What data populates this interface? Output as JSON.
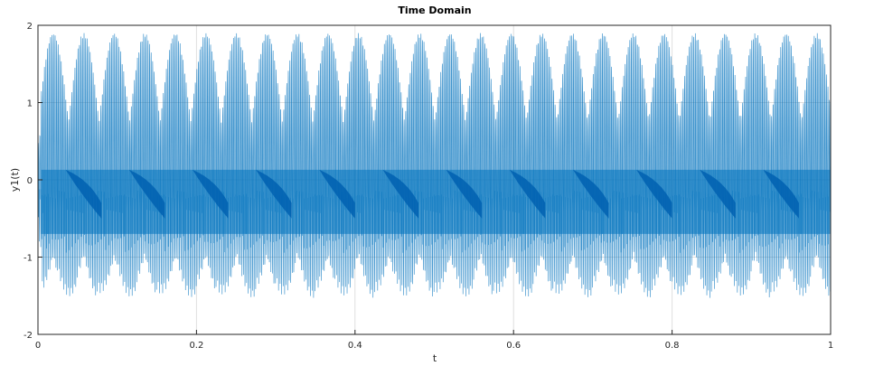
{
  "chart_data": {
    "type": "line",
    "title": "Time Domain",
    "xlabel": "t",
    "ylabel": "y1(t)",
    "xlim": [
      0,
      1
    ],
    "ylim": [
      -2,
      2
    ],
    "xticks": [
      0,
      0.2,
      0.4,
      0.6,
      0.8,
      1
    ],
    "xtick_labels": [
      "0",
      "0.2",
      "0.4",
      "0.6",
      "0.8",
      "1"
    ],
    "yticks": [
      -2,
      -1,
      0,
      1,
      2
    ],
    "ytick_labels": [
      "-2",
      "-1",
      "0",
      "1",
      "2"
    ],
    "grid": true,
    "series": [
      {
        "color": "#0072bd",
        "x_range": [
          0,
          1
        ],
        "upper_envelope_max": 1.9,
        "lower_envelope_min": -1.55,
        "dense_band": [
          -0.7,
          0.13
        ],
        "envelope_period": 0.08,
        "description_points": {
          "x": [
            0,
            0.04,
            0.08,
            0.12,
            0.16,
            0.2,
            0.24,
            0.28,
            0.32,
            0.36,
            0.4,
            0.44,
            0.48,
            0.52,
            0.56,
            0.6,
            0.64,
            0.68,
            0.72,
            0.76,
            0.8,
            0.84,
            0.88,
            0.92,
            0.96,
            1
          ],
          "y_max": [
            0.9,
            1.9,
            1.9,
            1.9,
            1.9,
            1.9,
            1.9,
            1.9,
            1.9,
            1.9,
            1.9,
            1.9,
            1.9,
            1.9,
            1.9,
            1.9,
            1.9,
            1.9,
            1.9,
            1.9,
            1.9,
            1.9,
            1.9,
            1.9,
            1.9,
            1.9
          ],
          "y_min": [
            -1.2,
            -1.55,
            -1.55,
            -1.55,
            -1.55,
            -1.55,
            -1.55,
            -1.55,
            -1.55,
            -1.55,
            -1.55,
            -1.55,
            -1.55,
            -1.55,
            -1.55,
            -1.55,
            -1.55,
            -1.55,
            -1.55,
            -1.55,
            -1.55,
            -1.55,
            -1.55,
            -1.55,
            -1.55,
            -1.55
          ]
        }
      }
    ]
  }
}
